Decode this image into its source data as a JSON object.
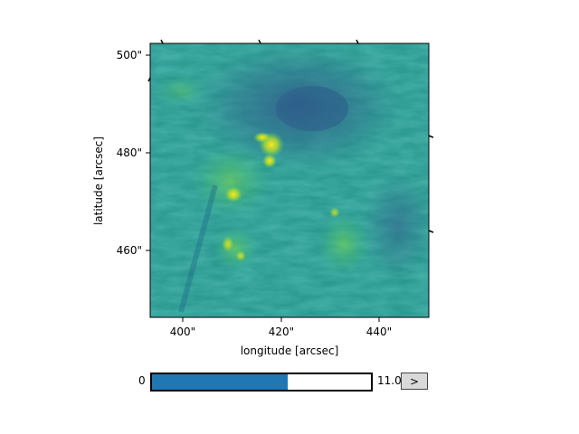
{
  "axes": {
    "xlabel": "longitude [arcsec]",
    "ylabel": "latitude [arcsec]",
    "x_ticks": [
      "400\"",
      "420\"",
      "440\""
    ],
    "y_ticks": [
      "500\"",
      "480\"",
      "460\""
    ]
  },
  "colormap": "viridis",
  "slider": {
    "min_label": "0",
    "max_label": "11.0",
    "value_fraction": 0.62
  },
  "next_button": {
    "label": ">"
  }
}
